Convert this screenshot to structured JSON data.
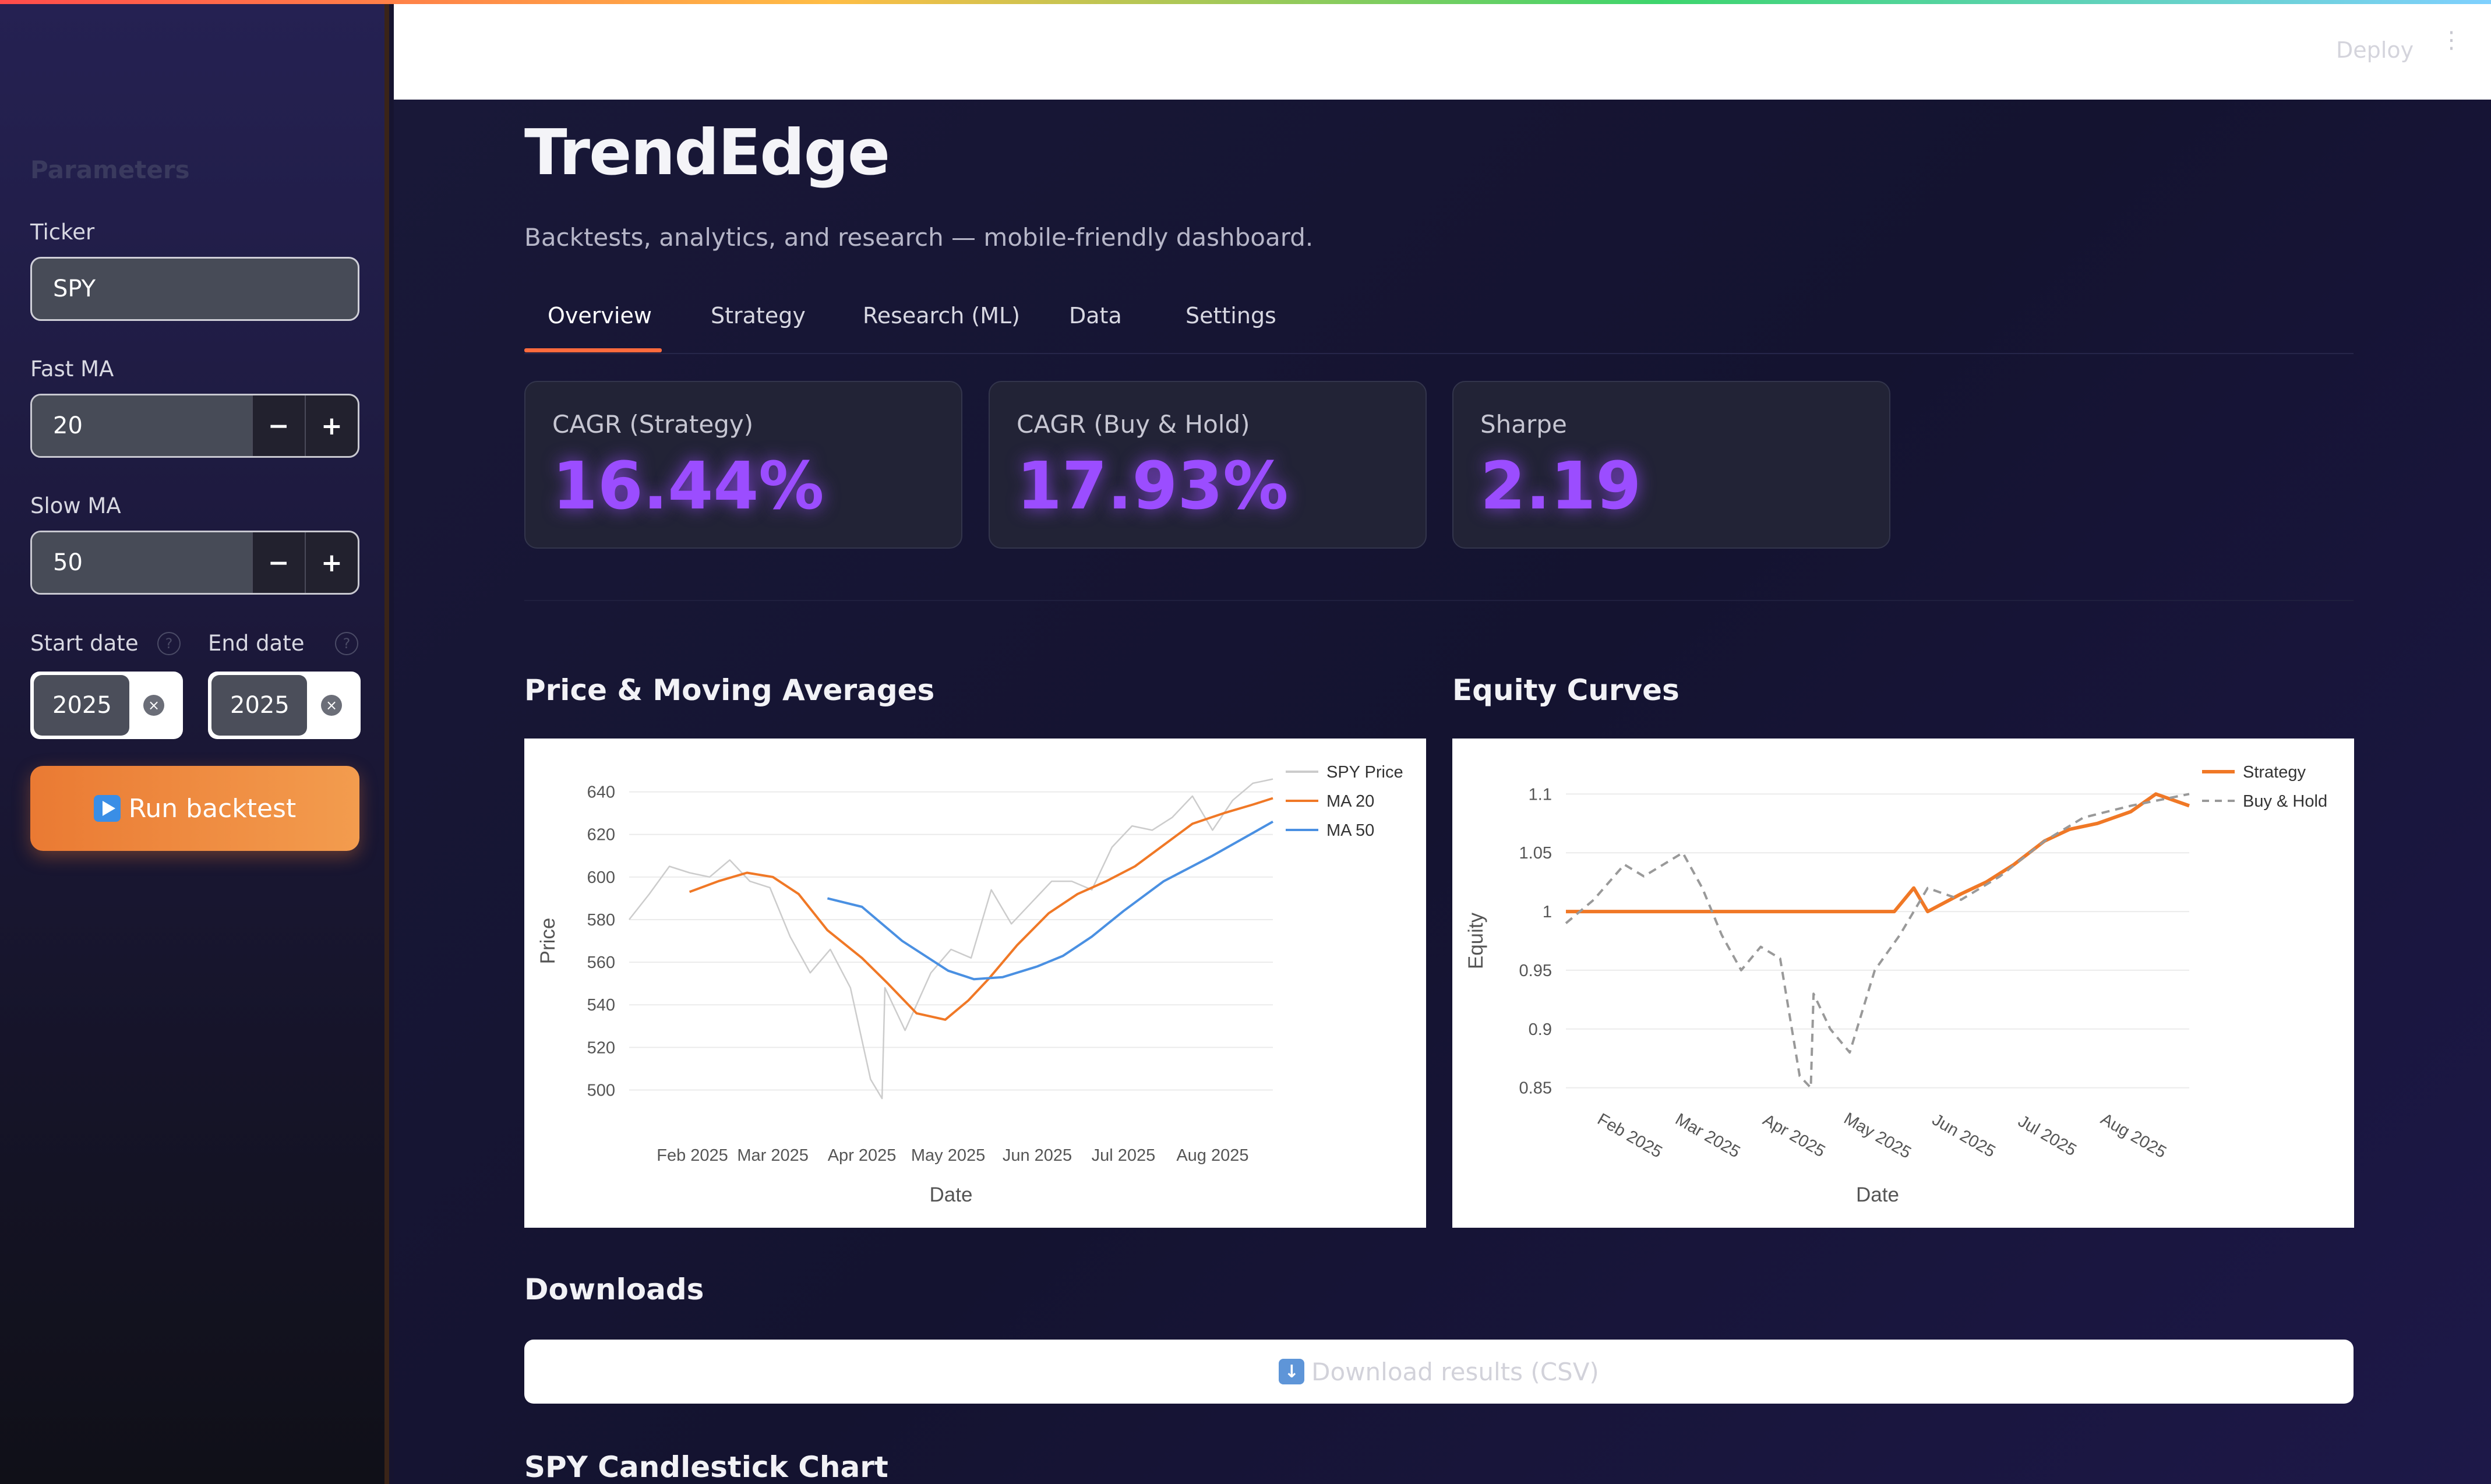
{
  "sidebar": {
    "title": "Parameters",
    "ticker_label": "Ticker",
    "ticker_value": "SPY",
    "fast_ma_label": "Fast MA",
    "fast_ma_value": "20",
    "slow_ma_label": "Slow MA",
    "slow_ma_value": "50",
    "start_date_label": "Start date",
    "start_date_value": "2025",
    "end_date_label": "End date",
    "end_date_value": "2025",
    "decrement": "−",
    "increment": "+",
    "help": "?",
    "clear": "×",
    "run_label": "Run backtest"
  },
  "header": {
    "deploy_label": "Deploy",
    "menu": "⋮"
  },
  "main": {
    "title": "TrendEdge",
    "subtitle": "Backtests, analytics, and research — mobile-friendly dashboard.",
    "tabs": [
      {
        "label": "Overview"
      },
      {
        "label": "Strategy"
      },
      {
        "label": "Research (ML)"
      },
      {
        "label": "Data"
      },
      {
        "label": "Settings"
      }
    ],
    "active_tab": "Overview",
    "metrics": [
      {
        "label": "CAGR (Strategy)",
        "value": "16.44%"
      },
      {
        "label": "CAGR (Buy & Hold)",
        "value": "17.93%"
      },
      {
        "label": "Sharpe",
        "value": "2.19"
      }
    ],
    "price_section_title": "Price & Moving Averages",
    "equity_section_title": "Equity Curves",
    "downloads_title": "Downloads",
    "download_label": "Download results (CSV)",
    "candlestick_title": "SPY Candlestick Chart"
  },
  "colors": {
    "accent": "#ff6a3d",
    "metric": "#9b4dff",
    "run_button": "#f08a3c",
    "sma20": "#f07826",
    "sma50": "#4a90e2",
    "price": "#cccccc"
  },
  "chart_data": [
    {
      "type": "line",
      "title": "Price & Moving Averages",
      "xlabel": "Date",
      "ylabel": "Price",
      "x_ticks": [
        "Feb 2025",
        "Mar 2025",
        "Apr 2025",
        "May 2025",
        "Jun 2025",
        "Jul 2025",
        "Aug 2025"
      ],
      "y_ticks": [
        500,
        520,
        540,
        560,
        580,
        600,
        620,
        640
      ],
      "ylim": [
        490,
        650
      ],
      "xlim": [
        "2025-01-10",
        "2025-08-22"
      ],
      "legend_position": "top-right",
      "series": [
        {
          "name": "SPY Price",
          "color": "#cccccc",
          "x": [
            "2025-01-10",
            "2025-01-17",
            "2025-01-24",
            "2025-01-31",
            "2025-02-07",
            "2025-02-14",
            "2025-02-21",
            "2025-02-28",
            "2025-03-07",
            "2025-03-14",
            "2025-03-21",
            "2025-03-28",
            "2025-04-04",
            "2025-04-08",
            "2025-04-09",
            "2025-04-16",
            "2025-04-25",
            "2025-05-02",
            "2025-05-09",
            "2025-05-16",
            "2025-05-23",
            "2025-05-30",
            "2025-06-06",
            "2025-06-13",
            "2025-06-20",
            "2025-06-27",
            "2025-07-04",
            "2025-07-11",
            "2025-07-18",
            "2025-07-25",
            "2025-08-01",
            "2025-08-08",
            "2025-08-15",
            "2025-08-22"
          ],
          "y": [
            580,
            592,
            605,
            602,
            600,
            608,
            598,
            595,
            572,
            555,
            566,
            548,
            505,
            496,
            548,
            528,
            555,
            566,
            562,
            594,
            578,
            588,
            598,
            598,
            594,
            614,
            624,
            622,
            628,
            638,
            622,
            636,
            644,
            646
          ]
        },
        {
          "name": "MA 20",
          "color": "#f07826",
          "x": [
            "2025-01-31",
            "2025-02-10",
            "2025-02-20",
            "2025-03-01",
            "2025-03-10",
            "2025-03-20",
            "2025-04-01",
            "2025-04-10",
            "2025-04-20",
            "2025-04-30",
            "2025-05-08",
            "2025-05-15",
            "2025-05-25",
            "2025-06-05",
            "2025-06-15",
            "2025-06-25",
            "2025-07-05",
            "2025-07-15",
            "2025-07-25",
            "2025-08-05",
            "2025-08-15",
            "2025-08-22"
          ],
          "y": [
            593,
            598,
            602,
            600,
            592,
            575,
            562,
            550,
            536,
            533,
            542,
            552,
            568,
            583,
            592,
            598,
            605,
            615,
            625,
            630,
            634,
            637
          ]
        },
        {
          "name": "MA 50",
          "color": "#4a90e2",
          "x": [
            "2025-03-20",
            "2025-04-01",
            "2025-04-15",
            "2025-05-01",
            "2025-05-10",
            "2025-05-20",
            "2025-06-01",
            "2025-06-10",
            "2025-06-20",
            "2025-07-01",
            "2025-07-15",
            "2025-08-01",
            "2025-08-22"
          ],
          "y": [
            590,
            586,
            570,
            556,
            552,
            553,
            558,
            563,
            572,
            584,
            598,
            610,
            626
          ]
        }
      ]
    },
    {
      "type": "line",
      "title": "Equity Curves",
      "xlabel": "Date",
      "ylabel": "Equity",
      "x_ticks": [
        "Feb 2025",
        "Mar 2025",
        "Apr 2025",
        "May 2025",
        "Jun 2025",
        "Jul 2025",
        "Aug 2025"
      ],
      "y_ticks": [
        0.85,
        0.9,
        0.95,
        1,
        1.05,
        1.1
      ],
      "ylim": [
        0.83,
        1.12
      ],
      "xlim": [
        "2025-01-10",
        "2025-08-22"
      ],
      "legend_position": "top-right",
      "series": [
        {
          "name": "Strategy",
          "color": "#f07826",
          "x": [
            "2025-01-10",
            "2025-05-08",
            "2025-05-15",
            "2025-05-20",
            "2025-06-01",
            "2025-06-10",
            "2025-06-20",
            "2025-07-01",
            "2025-07-10",
            "2025-07-20",
            "2025-08-01",
            "2025-08-10",
            "2025-08-22"
          ],
          "y": [
            1.0,
            1.0,
            1.02,
            1.0,
            1.015,
            1.025,
            1.04,
            1.06,
            1.07,
            1.075,
            1.085,
            1.1,
            1.09
          ]
        },
        {
          "name": "Buy & Hold",
          "color": "#999999",
          "dashed": true,
          "x": [
            "2025-01-10",
            "2025-01-20",
            "2025-01-31",
            "2025-02-07",
            "2025-02-14",
            "2025-02-21",
            "2025-02-28",
            "2025-03-07",
            "2025-03-14",
            "2025-03-21",
            "2025-03-28",
            "2025-04-04",
            "2025-04-08",
            "2025-04-09",
            "2025-04-15",
            "2025-04-22",
            "2025-05-01",
            "2025-05-10",
            "2025-05-20",
            "2025-06-01",
            "2025-06-15",
            "2025-07-01",
            "2025-07-15",
            "2025-08-01",
            "2025-08-22"
          ],
          "y": [
            0.99,
            1.01,
            1.04,
            1.03,
            1.04,
            1.05,
            1.02,
            0.98,
            0.95,
            0.97,
            0.96,
            0.86,
            0.85,
            0.93,
            0.9,
            0.88,
            0.95,
            0.98,
            1.02,
            1.01,
            1.03,
            1.06,
            1.08,
            1.09,
            1.1
          ]
        }
      ]
    }
  ]
}
